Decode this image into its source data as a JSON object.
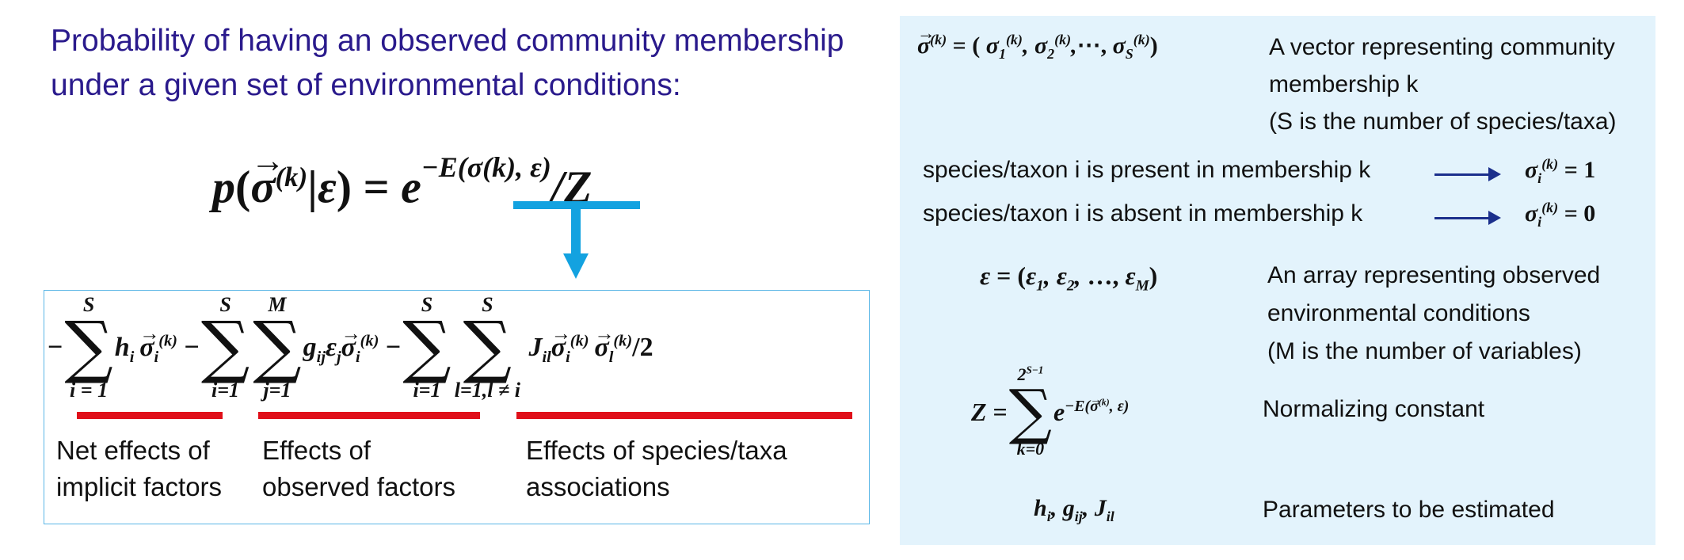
{
  "title": "Probability of having an observed community membership under a given set of environmental conditions:",
  "main_equation": {
    "lhs": "p",
    "sigma": "σ",
    "membership_index": "(k)",
    "condition": "ε",
    "equals": "=",
    "base": "e",
    "exponent": "−E(σ(k), ε)",
    "divisor": "/Z"
  },
  "energy_terms": [
    {
      "expression": "− Σ_{i=1}^{S} h_i σ_i^(k)",
      "caption": "Net effects of implicit factors"
    },
    {
      "expression": "− Σ_{i=1}^{S} Σ_{j=1}^{M} g_ij ε_j σ_i^(k)",
      "caption": "Effects of observed factors"
    },
    {
      "expression": "− Σ_{i=1}^{S} Σ_{l=1, l ≠ i}^{S} J_il σ_i^(k) σ_l^(k) /2",
      "caption": "Effects of species/taxa associations"
    }
  ],
  "captions": {
    "implicit": "Net effects of implicit factors",
    "observed": "Effects of observed factors",
    "associations": "Effects of species/taxa associations"
  },
  "definitions": {
    "sigma_vector": {
      "math": "σ(k) = ( σ1(k), σ2(k),⋯, σS(k))",
      "description": "A vector representing community membership k",
      "note": "(S is the number of species/taxa)"
    },
    "present": {
      "text": "species/taxon i is present in membership k",
      "value": "σi(k) = 1"
    },
    "absent": {
      "text": "species/taxon i is absent in membership k",
      "value": "σi(k) = 0"
    },
    "epsilon": {
      "math": "ε = (ε1, ε2, …, εM)",
      "description": "An array representing observed environmental conditions",
      "note": "(M is the number of variables)"
    },
    "partition": {
      "math": "Z = Σ_{k=0}^{2^(S−1)} e^(−E(σ(k), ε))",
      "description": "Normalizing constant"
    },
    "parameters": {
      "math": "h_i, g_ij, J_il",
      "description": "Parameters to be estimated"
    }
  },
  "colors": {
    "title": "#2a1a8c",
    "energy_arrow": "#13a2e0",
    "underline": "#e0101a",
    "panel_bg": "#e3f3fc",
    "def_arrow": "#1b2f8c"
  }
}
